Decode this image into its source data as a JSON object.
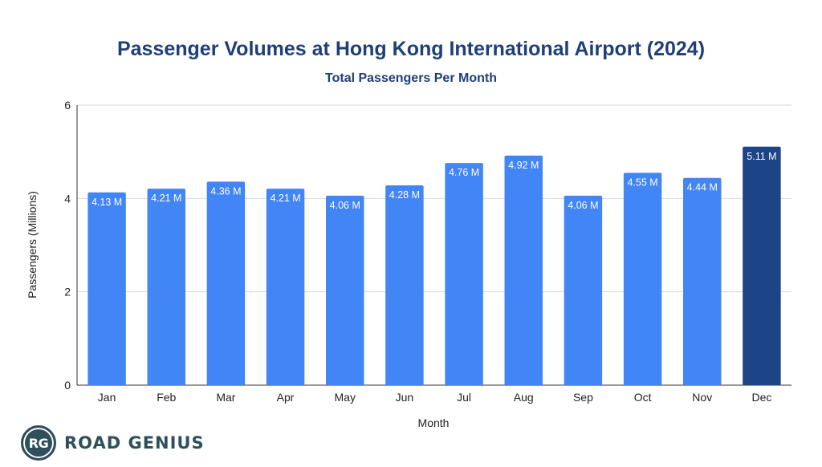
{
  "chart_data": {
    "type": "bar",
    "title": "Passenger Volumes at Hong Kong International Airport (2024)",
    "subtitle": "Total Passengers Per Month",
    "xlabel": "Month",
    "ylabel": "Passengers (Millions)",
    "ylim": [
      0,
      6
    ],
    "yticks": [
      0,
      2,
      4,
      6
    ],
    "grid": true,
    "categories": [
      "Jan",
      "Feb",
      "Mar",
      "Apr",
      "May",
      "Jun",
      "Jul",
      "Aug",
      "Sep",
      "Oct",
      "Nov",
      "Dec"
    ],
    "values": [
      4.13,
      4.21,
      4.36,
      4.21,
      4.06,
      4.28,
      4.76,
      4.92,
      4.06,
      4.55,
      4.44,
      5.11
    ],
    "data_labels": [
      "4.13 M",
      "4.21 M",
      "4.36 M",
      "4.21 M",
      "4.06 M",
      "4.28 M",
      "4.76 M",
      "4.92 M",
      "4.06 M",
      "4.55 M",
      "4.44 M",
      "5.11 M"
    ],
    "highlight_index": 11,
    "colors": {
      "bar": "#4285f4",
      "highlight": "#1c4587",
      "title": "#1f3f77",
      "grid": "#d9d9d9",
      "axis_text": "#222222"
    }
  },
  "logo": {
    "badge": "RG",
    "name": "ROAD GENIUS"
  }
}
